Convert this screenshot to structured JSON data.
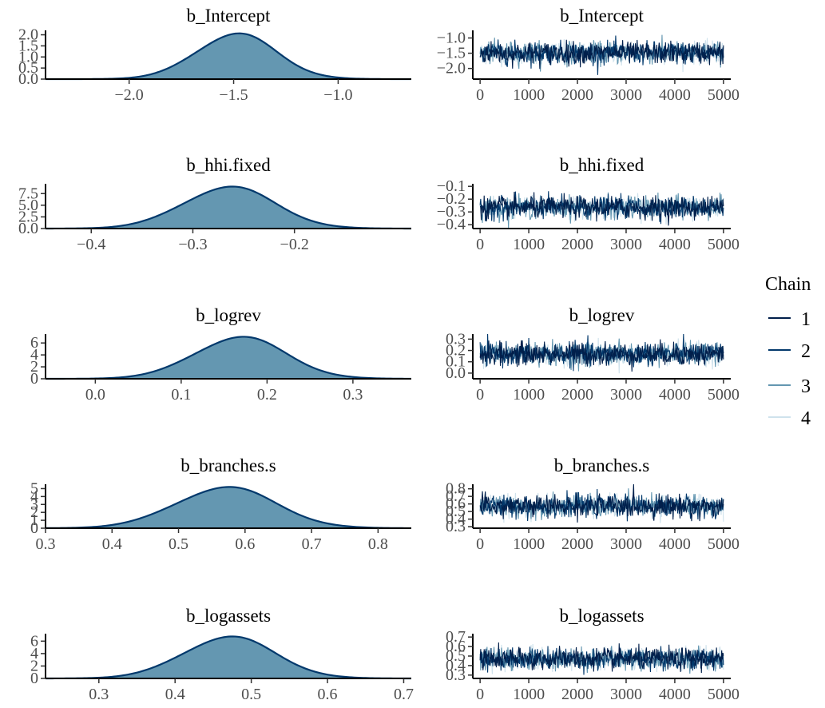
{
  "chart_data": [
    {
      "type": "area",
      "title": "b_Intercept",
      "xlim": [
        -2.4,
        -0.65
      ],
      "ylim": [
        0,
        2.2
      ],
      "xticks": [
        "-2.0",
        "-1.5",
        "-1.0"
      ],
      "yticks": [
        "0.0",
        "0.5",
        "1.0",
        "1.5",
        "2.0"
      ],
      "mean": -1.49,
      "sd": 0.19
    },
    {
      "type": "line",
      "title": "b_Intercept",
      "xlim": [
        -150,
        5150
      ],
      "ylim": [
        -2.35,
        -0.75
      ],
      "xticks": [
        "0",
        "1000",
        "2000",
        "3000",
        "4000",
        "5000"
      ],
      "yticks": [
        "-2.0",
        "-1.5",
        "-1.0"
      ],
      "mean": -1.49,
      "sd": 0.19
    },
    {
      "type": "area",
      "title": "b_hhi.fixed",
      "xlim": [
        -0.445,
        -0.085
      ],
      "ylim": [
        0,
        9.6
      ],
      "xticks": [
        "-0.4",
        "-0.3",
        "-0.2"
      ],
      "yticks": [
        "0.0",
        "2.5",
        "5.0",
        "7.5"
      ],
      "mean": -0.265,
      "sd": 0.045
    },
    {
      "type": "line",
      "title": "b_hhi.fixed",
      "xlim": [
        -150,
        5150
      ],
      "ylim": [
        -0.43,
        -0.08
      ],
      "xticks": [
        "0",
        "1000",
        "2000",
        "3000",
        "4000",
        "5000"
      ],
      "yticks": [
        "-0.4",
        "-0.3",
        "-0.2",
        "-0.1"
      ],
      "mean": -0.265,
      "sd": 0.045
    },
    {
      "type": "area",
      "title": "b_logrev",
      "xlim": [
        -0.058,
        0.368
      ],
      "ylim": [
        0,
        7.5
      ],
      "xticks": [
        "0.0",
        "0.1",
        "0.2",
        "0.3"
      ],
      "yticks": [
        "0",
        "2",
        "4",
        "6"
      ],
      "mean": 0.168,
      "sd": 0.053
    },
    {
      "type": "line",
      "title": "b_logrev",
      "xlim": [
        -150,
        5150
      ],
      "ylim": [
        -0.05,
        0.345
      ],
      "xticks": [
        "0",
        "1000",
        "2000",
        "3000",
        "4000",
        "5000"
      ],
      "yticks": [
        "0.0",
        "0.1",
        "0.2",
        "0.3"
      ],
      "mean": 0.168,
      "sd": 0.053
    },
    {
      "type": "area",
      "title": "b_branches.s",
      "xlim": [
        0.3,
        0.85
      ],
      "ylim": [
        0,
        5.55
      ],
      "xticks": [
        "0.3",
        "0.4",
        "0.5",
        "0.6",
        "0.7",
        "0.8"
      ],
      "yticks": [
        "0",
        "1",
        "2",
        "3",
        "4",
        "5"
      ],
      "mean": 0.57,
      "sd": 0.075
    },
    {
      "type": "line",
      "title": "b_branches.s",
      "xlim": [
        -150,
        5150
      ],
      "ylim": [
        0.28,
        0.86
      ],
      "xticks": [
        "0",
        "1000",
        "2000",
        "3000",
        "4000",
        "5000"
      ],
      "yticks": [
        "0.3",
        "0.4",
        "0.5",
        "0.6",
        "0.7",
        "0.8"
      ],
      "mean": 0.57,
      "sd": 0.075
    },
    {
      "type": "area",
      "title": "b_logassets",
      "xlim": [
        0.23,
        0.71
      ],
      "ylim": [
        0,
        7.2
      ],
      "xticks": [
        "0.3",
        "0.4",
        "0.5",
        "0.6",
        "0.7"
      ],
      "yticks": [
        "0",
        "2",
        "4",
        "6"
      ],
      "mean": 0.47,
      "sd": 0.06
    },
    {
      "type": "line",
      "title": "b_logassets",
      "xlim": [
        -150,
        5150
      ],
      "ylim": [
        0.265,
        0.735
      ],
      "xticks": [
        "0",
        "1000",
        "2000",
        "3000",
        "4000",
        "5000"
      ],
      "yticks": [
        "0.3",
        "0.4",
        "0.5",
        "0.6",
        "0.7"
      ],
      "mean": 0.47,
      "sd": 0.06
    }
  ],
  "legend": {
    "title": "Chain",
    "items": [
      {
        "label": "1",
        "color": "#011f4b"
      },
      {
        "label": "2",
        "color": "#03396c"
      },
      {
        "label": "3",
        "color": "#6497b1"
      },
      {
        "label": "4",
        "color": "#cfe2ec"
      }
    ]
  },
  "colors": {
    "density_fill": "#6497b1",
    "density_line": "#03396c"
  }
}
